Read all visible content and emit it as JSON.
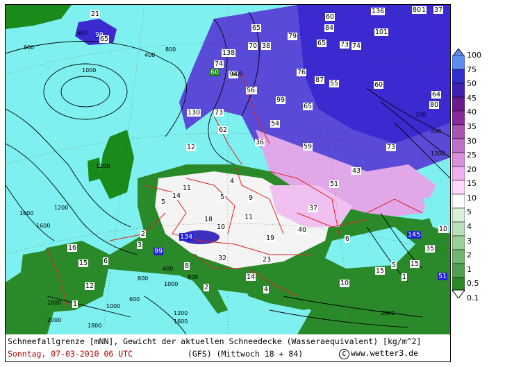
{
  "footer": {
    "description": "Schneefallgrenze [mNN], Gewicht der aktuellen Schneedecke (Wasseraequivalent) [kg/m^2]",
    "date_run": "Sonntag, 07-03-2010  06 UTC",
    "model": "(GFS)  (Mittwoch 18 + 84)",
    "copyright": "www.wetter3.de"
  },
  "legend": {
    "ticks": [
      "100",
      "75",
      "50",
      "45",
      "40",
      "35",
      "30",
      "25",
      "20",
      "15",
      "10",
      "5",
      "4",
      "3",
      "2",
      "1",
      "0.5",
      "0.1"
    ],
    "colors": [
      "#5b8ef0",
      "#3030d0",
      "#4020b0",
      "#6a1a8a",
      "#8a2a9a",
      "#a855b0",
      "#c070c8",
      "#d890d8",
      "#f0b0f0",
      "#ffd8ff",
      "#ffffff",
      "#d8f0d8",
      "#b8e0b8",
      "#98d098",
      "#70b870",
      "#50a050",
      "#2a8a2a",
      "#1a6a1a"
    ]
  },
  "map": {
    "snow_labels": [
      "21",
      "99",
      "65",
      "60",
      "61",
      "136",
      "101",
      "37",
      "65",
      "80",
      "79",
      "84",
      "65",
      "73",
      "74",
      "138",
      "70",
      "38",
      "94",
      "74",
      "60",
      "76",
      "56",
      "87",
      "55",
      "60",
      "130",
      "73",
      "56",
      "99",
      "65",
      "64",
      "80",
      "62",
      "54",
      "36",
      "12",
      "59",
      "73",
      "43",
      "11",
      "4",
      "14",
      "5",
      "51",
      "9",
      "5",
      "18",
      "10",
      "11",
      "37",
      "134",
      "40",
      "19",
      "2",
      "3",
      "99",
      "16",
      "15",
      "6",
      "12",
      "8",
      "32",
      "23",
      "14",
      "4",
      "2",
      "1",
      "10",
      "6",
      "145",
      "35",
      "15",
      "1",
      "15",
      "5",
      "51",
      "10"
    ],
    "isoline_labels": [
      "600",
      "1000",
      "600",
      "800",
      "400",
      "1200",
      "1600",
      "1600",
      "1200",
      "2000",
      "800",
      "1000",
      "400",
      "600",
      "1000",
      "800",
      "1200",
      "1600",
      "1800",
      "2000",
      "1800",
      "400",
      "200",
      "1200",
      "600"
    ]
  }
}
